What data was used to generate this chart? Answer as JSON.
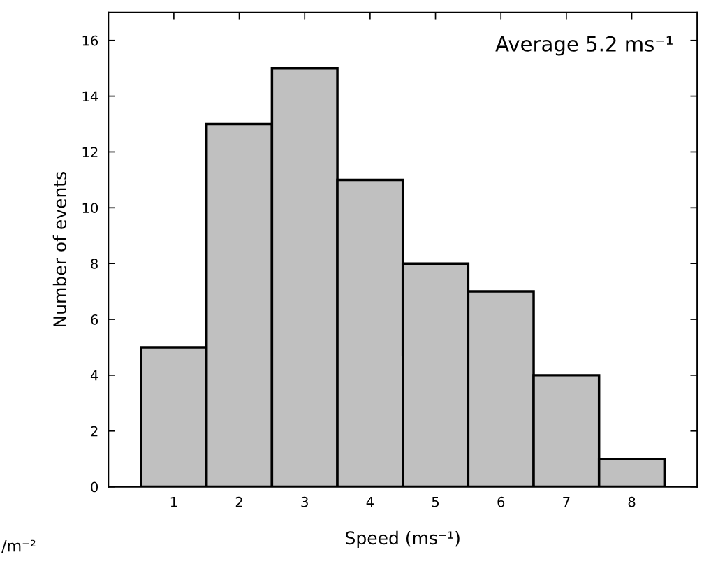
{
  "chart_data": {
    "type": "histogram",
    "xlabel": "Speed (ms⁻¹)",
    "ylabel": "Number of events",
    "bins": [
      0.5,
      1.5,
      2.5,
      3.5,
      4.5,
      5.5,
      6.5,
      7.5,
      8.5
    ],
    "values": [
      5,
      13,
      15,
      11,
      8,
      7,
      4,
      1
    ],
    "color": "#c0c0c0",
    "xlim": [
      0,
      9
    ],
    "xticks": [
      1,
      2,
      3,
      4,
      5,
      6,
      7,
      8
    ],
    "ylim": [
      0,
      17
    ],
    "yticks": [
      0,
      2,
      4,
      6,
      8,
      10,
      12,
      14,
      16
    ],
    "grid": false,
    "annotations": [
      "Average 5.2 ms⁻¹",
      "/m⁻²"
    ]
  }
}
